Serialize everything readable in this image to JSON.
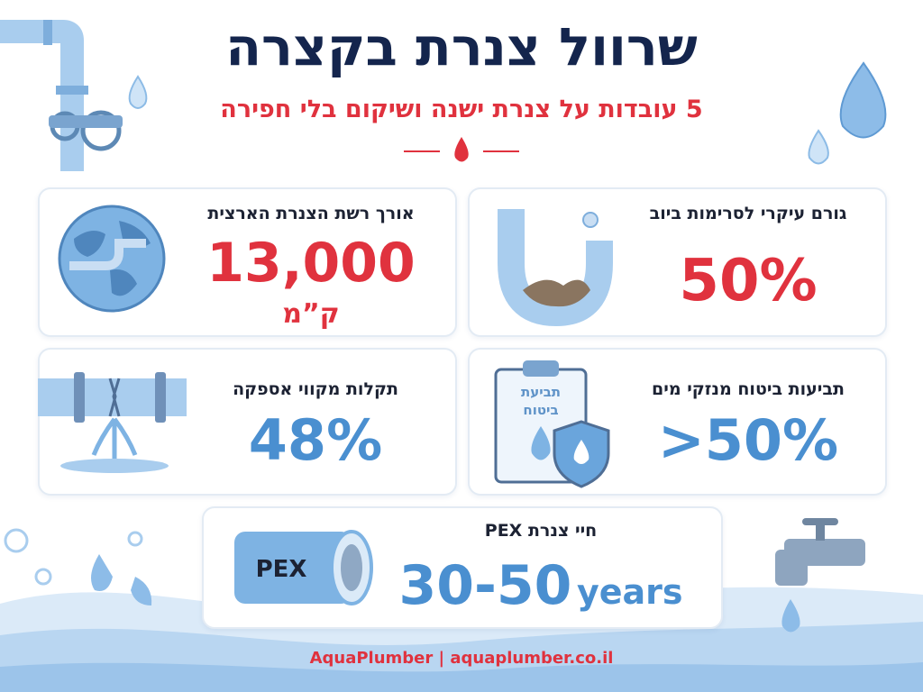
{
  "header": {
    "title": "שרוול צנרת בקצרה",
    "subtitle": "5 עובדות על צנרת ישנה ושיקום בלי חפירה"
  },
  "cards": [
    {
      "label": "גורם עיקרי לסרימות ביוב",
      "value": "50%"
    },
    {
      "label": "אורך רשת הצנרת הארצית",
      "value": "13,000",
      "unit": "ק”מ"
    },
    {
      "label": "תביעות ביטוח מנזקי מים",
      "value": ">50%"
    },
    {
      "label": "תקלות מקווי אספקה",
      "value": "48%"
    },
    {
      "label": "חיי צנרת PEX",
      "value": "30-50",
      "unit": "years"
    }
  ],
  "illustrations": {
    "clipboard": [
      "תביעת",
      "ביטוח"
    ],
    "pipe_label": "PEX"
  },
  "footer": "AquaPlumber | aquaplumber.co.il"
}
